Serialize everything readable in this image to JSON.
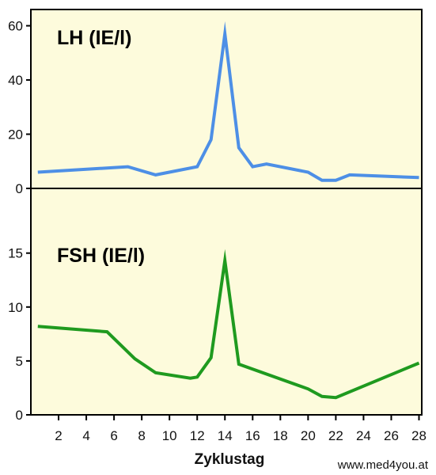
{
  "chart_data": [
    {
      "type": "line",
      "title": "LH (IE/l)",
      "color": "#4d8fe6",
      "ylim": [
        0,
        66
      ],
      "yticks": [
        0,
        20,
        40,
        60
      ],
      "x": [
        0.5,
        7,
        9,
        12,
        13,
        14,
        15,
        16,
        17,
        20,
        21,
        22,
        23,
        28
      ],
      "values": [
        6,
        8,
        5,
        8,
        18,
        57,
        15,
        8,
        9,
        6,
        3,
        3,
        5,
        4
      ],
      "series_name": ""
    },
    {
      "type": "line",
      "title": "FSH (IE/l)",
      "color": "#1f9a1f",
      "ylim": [
        0,
        21
      ],
      "yticks": [
        0,
        5,
        10,
        15
      ],
      "x": [
        0.5,
        5.5,
        7.5,
        9,
        11.5,
        12,
        13,
        14,
        15,
        20,
        21,
        22,
        28
      ],
      "values": [
        8.2,
        7.7,
        5.2,
        3.9,
        3.4,
        3.5,
        5.3,
        14.3,
        4.7,
        2.4,
        1.7,
        1.6,
        4.8
      ],
      "series_name": ""
    }
  ],
  "xaxis": {
    "label": "Zyklustag",
    "xlim": [
      0,
      28.2
    ],
    "ticks": [
      2,
      4,
      6,
      8,
      10,
      12,
      14,
      16,
      18,
      20,
      22,
      24,
      26,
      28
    ]
  },
  "background_color": "#fdfbdc",
  "credit": "www.med4you.at"
}
